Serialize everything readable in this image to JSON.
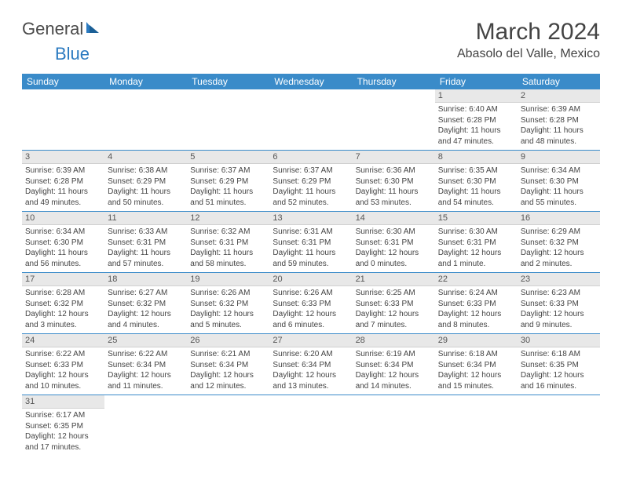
{
  "logo": {
    "text1": "General",
    "text2": "Blue"
  },
  "title": "March 2024",
  "location": "Abasolo del Valle, Mexico",
  "colors": {
    "header_bg": "#3a8bc9",
    "header_text": "#ffffff",
    "daynum_bg": "#e8e8e8",
    "row_divider": "#3a8bc9",
    "text": "#444444",
    "logo_blue": "#2b7ac0"
  },
  "fonts": {
    "title_size_pt": 22,
    "location_size_pt": 12,
    "header_size_pt": 9,
    "cell_size_pt": 7.5
  },
  "weekdays": [
    "Sunday",
    "Monday",
    "Tuesday",
    "Wednesday",
    "Thursday",
    "Friday",
    "Saturday"
  ],
  "weeks": [
    [
      null,
      null,
      null,
      null,
      null,
      {
        "n": "1",
        "sr": "Sunrise: 6:40 AM",
        "ss": "Sunset: 6:28 PM",
        "dl": "Daylight: 11 hours and 47 minutes."
      },
      {
        "n": "2",
        "sr": "Sunrise: 6:39 AM",
        "ss": "Sunset: 6:28 PM",
        "dl": "Daylight: 11 hours and 48 minutes."
      }
    ],
    [
      {
        "n": "3",
        "sr": "Sunrise: 6:39 AM",
        "ss": "Sunset: 6:28 PM",
        "dl": "Daylight: 11 hours and 49 minutes."
      },
      {
        "n": "4",
        "sr": "Sunrise: 6:38 AM",
        "ss": "Sunset: 6:29 PM",
        "dl": "Daylight: 11 hours and 50 minutes."
      },
      {
        "n": "5",
        "sr": "Sunrise: 6:37 AM",
        "ss": "Sunset: 6:29 PM",
        "dl": "Daylight: 11 hours and 51 minutes."
      },
      {
        "n": "6",
        "sr": "Sunrise: 6:37 AM",
        "ss": "Sunset: 6:29 PM",
        "dl": "Daylight: 11 hours and 52 minutes."
      },
      {
        "n": "7",
        "sr": "Sunrise: 6:36 AM",
        "ss": "Sunset: 6:30 PM",
        "dl": "Daylight: 11 hours and 53 minutes."
      },
      {
        "n": "8",
        "sr": "Sunrise: 6:35 AM",
        "ss": "Sunset: 6:30 PM",
        "dl": "Daylight: 11 hours and 54 minutes."
      },
      {
        "n": "9",
        "sr": "Sunrise: 6:34 AM",
        "ss": "Sunset: 6:30 PM",
        "dl": "Daylight: 11 hours and 55 minutes."
      }
    ],
    [
      {
        "n": "10",
        "sr": "Sunrise: 6:34 AM",
        "ss": "Sunset: 6:30 PM",
        "dl": "Daylight: 11 hours and 56 minutes."
      },
      {
        "n": "11",
        "sr": "Sunrise: 6:33 AM",
        "ss": "Sunset: 6:31 PM",
        "dl": "Daylight: 11 hours and 57 minutes."
      },
      {
        "n": "12",
        "sr": "Sunrise: 6:32 AM",
        "ss": "Sunset: 6:31 PM",
        "dl": "Daylight: 11 hours and 58 minutes."
      },
      {
        "n": "13",
        "sr": "Sunrise: 6:31 AM",
        "ss": "Sunset: 6:31 PM",
        "dl": "Daylight: 11 hours and 59 minutes."
      },
      {
        "n": "14",
        "sr": "Sunrise: 6:30 AM",
        "ss": "Sunset: 6:31 PM",
        "dl": "Daylight: 12 hours and 0 minutes."
      },
      {
        "n": "15",
        "sr": "Sunrise: 6:30 AM",
        "ss": "Sunset: 6:31 PM",
        "dl": "Daylight: 12 hours and 1 minute."
      },
      {
        "n": "16",
        "sr": "Sunrise: 6:29 AM",
        "ss": "Sunset: 6:32 PM",
        "dl": "Daylight: 12 hours and 2 minutes."
      }
    ],
    [
      {
        "n": "17",
        "sr": "Sunrise: 6:28 AM",
        "ss": "Sunset: 6:32 PM",
        "dl": "Daylight: 12 hours and 3 minutes."
      },
      {
        "n": "18",
        "sr": "Sunrise: 6:27 AM",
        "ss": "Sunset: 6:32 PM",
        "dl": "Daylight: 12 hours and 4 minutes."
      },
      {
        "n": "19",
        "sr": "Sunrise: 6:26 AM",
        "ss": "Sunset: 6:32 PM",
        "dl": "Daylight: 12 hours and 5 minutes."
      },
      {
        "n": "20",
        "sr": "Sunrise: 6:26 AM",
        "ss": "Sunset: 6:33 PM",
        "dl": "Daylight: 12 hours and 6 minutes."
      },
      {
        "n": "21",
        "sr": "Sunrise: 6:25 AM",
        "ss": "Sunset: 6:33 PM",
        "dl": "Daylight: 12 hours and 7 minutes."
      },
      {
        "n": "22",
        "sr": "Sunrise: 6:24 AM",
        "ss": "Sunset: 6:33 PM",
        "dl": "Daylight: 12 hours and 8 minutes."
      },
      {
        "n": "23",
        "sr": "Sunrise: 6:23 AM",
        "ss": "Sunset: 6:33 PM",
        "dl": "Daylight: 12 hours and 9 minutes."
      }
    ],
    [
      {
        "n": "24",
        "sr": "Sunrise: 6:22 AM",
        "ss": "Sunset: 6:33 PM",
        "dl": "Daylight: 12 hours and 10 minutes."
      },
      {
        "n": "25",
        "sr": "Sunrise: 6:22 AM",
        "ss": "Sunset: 6:34 PM",
        "dl": "Daylight: 12 hours and 11 minutes."
      },
      {
        "n": "26",
        "sr": "Sunrise: 6:21 AM",
        "ss": "Sunset: 6:34 PM",
        "dl": "Daylight: 12 hours and 12 minutes."
      },
      {
        "n": "27",
        "sr": "Sunrise: 6:20 AM",
        "ss": "Sunset: 6:34 PM",
        "dl": "Daylight: 12 hours and 13 minutes."
      },
      {
        "n": "28",
        "sr": "Sunrise: 6:19 AM",
        "ss": "Sunset: 6:34 PM",
        "dl": "Daylight: 12 hours and 14 minutes."
      },
      {
        "n": "29",
        "sr": "Sunrise: 6:18 AM",
        "ss": "Sunset: 6:34 PM",
        "dl": "Daylight: 12 hours and 15 minutes."
      },
      {
        "n": "30",
        "sr": "Sunrise: 6:18 AM",
        "ss": "Sunset: 6:35 PM",
        "dl": "Daylight: 12 hours and 16 minutes."
      }
    ],
    [
      {
        "n": "31",
        "sr": "Sunrise: 6:17 AM",
        "ss": "Sunset: 6:35 PM",
        "dl": "Daylight: 12 hours and 17 minutes."
      },
      null,
      null,
      null,
      null,
      null,
      null
    ]
  ]
}
